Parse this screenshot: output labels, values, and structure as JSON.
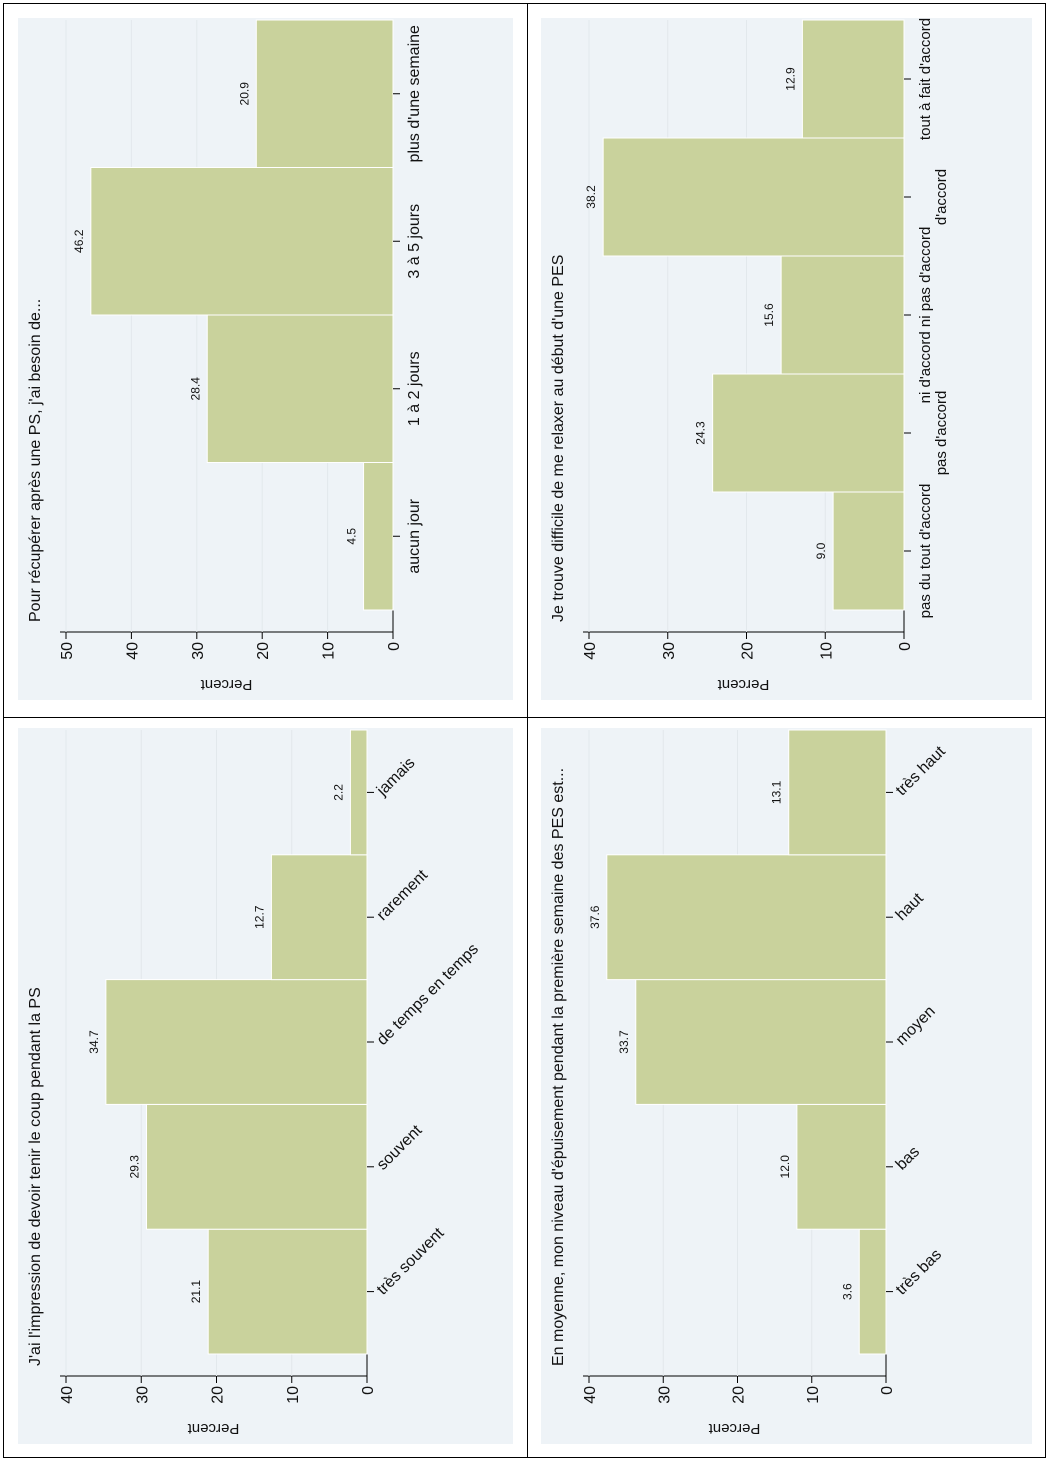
{
  "bar_color": "#c9d29c",
  "plot_background": "#eef3f7",
  "chart_data": [
    {
      "type": "bar",
      "title": "J'ai l'impression de devoir tenir le coup pendant la PS",
      "ylabel": "Percent",
      "ylim": [
        0,
        40
      ],
      "yticks": [
        0,
        10,
        20,
        30,
        40
      ],
      "categories": [
        "très souvent",
        "souvent",
        "de temps en temps",
        "rarement",
        "jamais"
      ],
      "values": [
        21.1,
        29.3,
        34.7,
        12.7,
        2.2
      ],
      "value_labels": [
        "21.1",
        "29.3",
        "34.7",
        "12.7",
        "2.2"
      ],
      "label_style": "angled"
    },
    {
      "type": "bar",
      "title": "En moyenne, mon niveau d'épuisement pendant la première semaine des PES est...",
      "ylabel": "Percent",
      "ylim": [
        0,
        40
      ],
      "yticks": [
        0,
        10,
        20,
        30,
        40
      ],
      "categories": [
        "très bas",
        "bas",
        "moyen",
        "haut",
        "très haut"
      ],
      "values": [
        3.6,
        12.0,
        33.7,
        37.6,
        13.1
      ],
      "value_labels": [
        "3.6",
        "12.0",
        "33.7",
        "37.6",
        "13.1"
      ],
      "label_style": "angled"
    },
    {
      "type": "bar",
      "title": "Pour récupérer après une PS, j'ai besoin de...",
      "ylabel": "Percent",
      "ylim": [
        0,
        50
      ],
      "yticks": [
        0,
        10,
        20,
        30,
        40,
        50
      ],
      "categories": [
        "aucun jour",
        "1 à 2 jours",
        "3 à 5 jours",
        "plus d'une semaine"
      ],
      "values": [
        4.5,
        28.4,
        46.2,
        20.9
      ],
      "value_labels": [
        "4.5",
        "28.4",
        "46.2",
        "20.9"
      ],
      "label_style": "straight"
    },
    {
      "type": "bar",
      "title": "Je trouve difficile de me relaxer au début d'une PES",
      "ylabel": "Percent",
      "ylim": [
        0,
        40
      ],
      "yticks": [
        0,
        10,
        20,
        30,
        40
      ],
      "categories": [
        "pas du tout d'accord",
        "pas d'accord",
        "ni d'accord ni pas d'accord",
        "d'accord",
        "tout à fait d'accord"
      ],
      "values": [
        9.0,
        24.3,
        15.6,
        38.2,
        12.9
      ],
      "value_labels": [
        "9.0",
        "24.3",
        "15.6",
        "38.2",
        "12.9"
      ],
      "label_style": "staggered"
    }
  ]
}
